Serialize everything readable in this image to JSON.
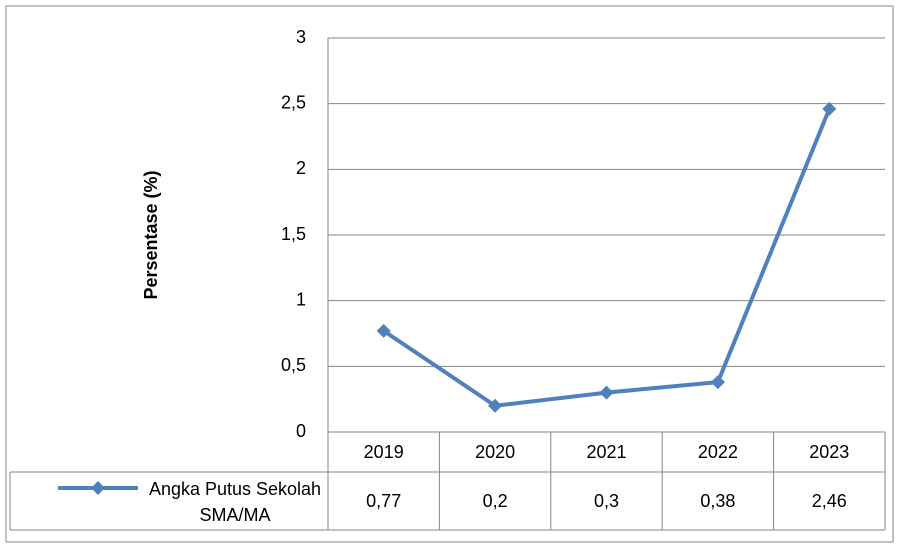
{
  "chart_data": {
    "type": "line",
    "ylabel": "Persentase (%)",
    "categories": [
      "2019",
      "2020",
      "2021",
      "2022",
      "2023"
    ],
    "series": [
      {
        "name": "Angka Putus Sekolah SMA/MA",
        "color": "#4f81bd",
        "values": [
          0.77,
          0.2,
          0.3,
          0.38,
          2.46
        ],
        "value_labels": [
          "0,77",
          "0,2",
          "0,3",
          "0,38",
          "2,46"
        ]
      }
    ],
    "ylim": [
      0,
      3
    ],
    "yticks": [
      0,
      {
        "value": 0.5,
        "label": "0,5"
      },
      1,
      {
        "value": 1.5,
        "label": "1,5"
      },
      2,
      {
        "value": 2.5,
        "label": "2,5"
      },
      3
    ],
    "grid": true,
    "data_table": true
  }
}
